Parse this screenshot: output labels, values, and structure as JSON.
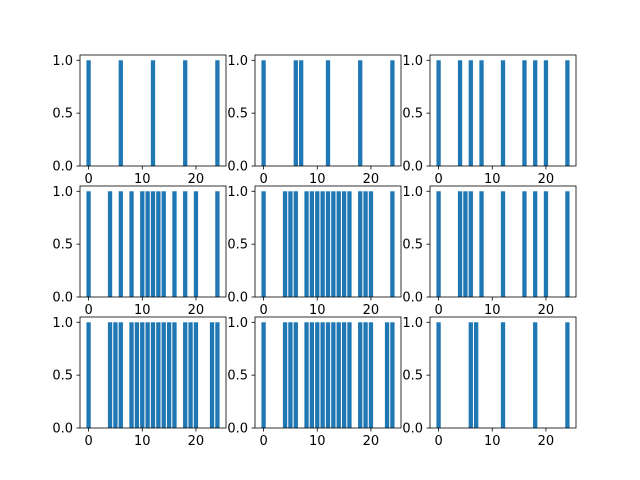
{
  "figure": {
    "background": "#ffffff"
  },
  "chart_data": [
    {
      "type": "bar",
      "x": [
        0,
        6,
        12,
        18,
        24
      ],
      "values": [
        1,
        1,
        1,
        1,
        1
      ],
      "xlim": [
        -1.6,
        25.6
      ],
      "ylim": [
        0,
        1.05
      ],
      "xticks": [
        0,
        10,
        20
      ],
      "yticks": [
        0.0,
        0.5,
        1.0
      ],
      "bar_color": "#1f77b4"
    },
    {
      "type": "bar",
      "x": [
        0,
        6,
        7,
        12,
        18,
        24
      ],
      "values": [
        1,
        1,
        1,
        1,
        1,
        1
      ],
      "xlim": [
        -1.6,
        25.6
      ],
      "ylim": [
        0,
        1.05
      ],
      "xticks": [
        0,
        10,
        20
      ],
      "yticks": [
        0.0,
        0.5,
        1.0
      ],
      "bar_color": "#1f77b4"
    },
    {
      "type": "bar",
      "x": [
        0,
        4,
        6,
        8,
        12,
        16,
        18,
        20,
        24
      ],
      "values": [
        1,
        1,
        1,
        1,
        1,
        1,
        1,
        1,
        1
      ],
      "xlim": [
        -1.6,
        25.6
      ],
      "ylim": [
        0,
        1.05
      ],
      "xticks": [
        0,
        10,
        20
      ],
      "yticks": [
        0.0,
        0.5,
        1.0
      ],
      "bar_color": "#1f77b4"
    },
    {
      "type": "bar",
      "x": [
        0,
        4,
        6,
        8,
        10,
        11,
        12,
        13,
        14,
        16,
        18,
        20,
        24
      ],
      "values": [
        1,
        1,
        1,
        1,
        1,
        1,
        1,
        1,
        1,
        1,
        1,
        1,
        1
      ],
      "xlim": [
        -1.6,
        25.6
      ],
      "ylim": [
        0,
        1.05
      ],
      "xticks": [
        0,
        10,
        20
      ],
      "yticks": [
        0.0,
        0.5,
        1.0
      ],
      "bar_color": "#1f77b4"
    },
    {
      "type": "bar",
      "x": [
        0,
        4,
        5,
        6,
        8,
        9,
        10,
        11,
        12,
        13,
        14,
        15,
        16,
        18,
        19,
        20,
        24
      ],
      "values": [
        1,
        1,
        1,
        1,
        1,
        1,
        1,
        1,
        1,
        1,
        1,
        1,
        1,
        1,
        1,
        1,
        1
      ],
      "xlim": [
        -1.6,
        25.6
      ],
      "ylim": [
        0,
        1.05
      ],
      "xticks": [
        0,
        10,
        20
      ],
      "yticks": [
        0.0,
        0.5,
        1.0
      ],
      "bar_color": "#1f77b4"
    },
    {
      "type": "bar",
      "x": [
        0,
        4,
        5,
        6,
        8,
        12,
        16,
        18,
        20,
        24
      ],
      "values": [
        1,
        1,
        1,
        1,
        1,
        1,
        1,
        1,
        1,
        1
      ],
      "xlim": [
        -1.6,
        25.6
      ],
      "ylim": [
        0,
        1.05
      ],
      "xticks": [
        0,
        10,
        20
      ],
      "yticks": [
        0.0,
        0.5,
        1.0
      ],
      "bar_color": "#1f77b4"
    },
    {
      "type": "bar",
      "x": [
        0,
        4,
        5,
        6,
        8,
        9,
        10,
        11,
        12,
        13,
        14,
        15,
        16,
        18,
        19,
        20,
        23,
        24
      ],
      "values": [
        1,
        1,
        1,
        1,
        1,
        1,
        1,
        1,
        1,
        1,
        1,
        1,
        1,
        1,
        1,
        1,
        1,
        1
      ],
      "xlim": [
        -1.6,
        25.6
      ],
      "ylim": [
        0,
        1.05
      ],
      "xticks": [
        0,
        10,
        20
      ],
      "yticks": [
        0.0,
        0.5,
        1.0
      ],
      "bar_color": "#1f77b4"
    },
    {
      "type": "bar",
      "x": [
        0,
        4,
        5,
        6,
        8,
        9,
        10,
        11,
        12,
        13,
        14,
        15,
        16,
        18,
        19,
        20,
        23,
        24
      ],
      "values": [
        1,
        1,
        1,
        1,
        1,
        1,
        1,
        1,
        1,
        1,
        1,
        1,
        1,
        1,
        1,
        1,
        1,
        1
      ],
      "xlim": [
        -1.6,
        25.6
      ],
      "ylim": [
        0,
        1.05
      ],
      "xticks": [
        0,
        10,
        20
      ],
      "yticks": [
        0.0,
        0.5,
        1.0
      ],
      "bar_color": "#1f77b4"
    },
    {
      "type": "bar",
      "x": [
        0,
        6,
        7,
        12,
        18,
        24
      ],
      "values": [
        1,
        1,
        1,
        1,
        1,
        1
      ],
      "xlim": [
        -1.6,
        25.6
      ],
      "ylim": [
        0,
        1.05
      ],
      "xticks": [
        0,
        10,
        20
      ],
      "yticks": [
        0.0,
        0.5,
        1.0
      ],
      "bar_color": "#1f77b4"
    }
  ]
}
